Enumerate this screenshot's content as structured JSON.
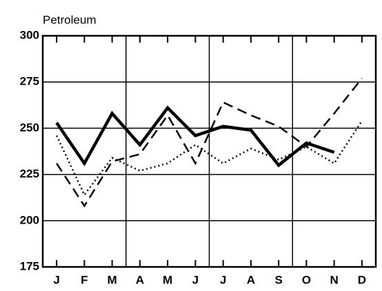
{
  "chart_data": {
    "type": "line",
    "title": "Petroleum",
    "categories": [
      "J",
      "F",
      "M",
      "A",
      "M",
      "J",
      "J",
      "A",
      "S",
      "O",
      "N",
      "D"
    ],
    "series": [
      {
        "color": "#000000",
        "style": "solid",
        "values": [
          253,
          231,
          258,
          241,
          261,
          246,
          251,
          249,
          230,
          242,
          237,
          null
        ]
      },
      {
        "color": "#000000",
        "style": "dashed",
        "values": [
          231,
          208,
          232,
          236,
          257,
          231,
          264,
          257,
          251,
          240,
          258,
          277
        ]
      },
      {
        "color": "#000000",
        "style": "dotted",
        "values": [
          246,
          214,
          234,
          227,
          231,
          241,
          231,
          239,
          233,
          240,
          231,
          254
        ]
      }
    ],
    "ylim": [
      175,
      300
    ],
    "yticks": [
      175,
      200,
      225,
      250,
      275,
      300
    ],
    "grid": true
  }
}
